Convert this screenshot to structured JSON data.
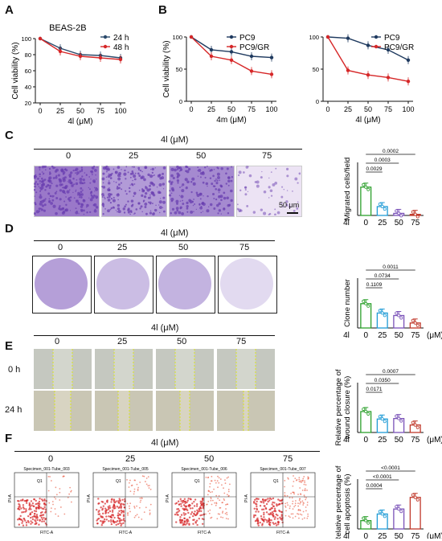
{
  "panels": {
    "A": "A",
    "B": "B",
    "C": "C",
    "D": "D",
    "E": "E",
    "F": "F"
  },
  "colors": {
    "blue": "#2b4a6b",
    "red": "#d62728",
    "navy": "#1f3a5f",
    "green": "#2ca02c",
    "cyan": "#1f9bd6",
    "purple": "#7a52b8",
    "crimson": "#c0392b",
    "stain": "#6a3fb0"
  },
  "chart_data": [
    {
      "type": "line",
      "id": "A",
      "title": "BEAS-2B",
      "xlabel": "4l (μM)",
      "ylabel": "Cell viability (%)",
      "x": [
        0,
        25,
        50,
        75,
        100
      ],
      "ylim": [
        20,
        100
      ],
      "yticks": [
        "100",
        "80",
        "60",
        "40",
        "20"
      ],
      "xticks": [
        "0",
        "25",
        "50",
        "75",
        "100"
      ],
      "series": [
        {
          "name": "24 h",
          "values": [
            100,
            88,
            80,
            79,
            76
          ]
        },
        {
          "name": "48 h",
          "values": [
            100,
            84,
            78,
            76,
            74
          ]
        }
      ]
    },
    {
      "type": "line",
      "id": "B1",
      "xlabel": "4m (μM)",
      "ylabel": "Cell viability (%)",
      "x": [
        0,
        25,
        50,
        75,
        100
      ],
      "ylim": [
        0,
        100
      ],
      "yticks": [
        "100",
        "50",
        "0"
      ],
      "xticks": [
        "0",
        "25",
        "50",
        "75",
        "100"
      ],
      "series": [
        {
          "name": "PC9",
          "values": [
            100,
            80,
            77,
            70,
            68
          ]
        },
        {
          "name": "PC9/GR",
          "values": [
            100,
            70,
            64,
            47,
            42
          ]
        }
      ]
    },
    {
      "type": "line",
      "id": "B2",
      "xlabel": "4l (μM)",
      "x": [
        0,
        25,
        50,
        75,
        100
      ],
      "ylim": [
        0,
        100
      ],
      "yticks": [
        "100",
        "50",
        "0"
      ],
      "xticks": [
        "0",
        "25",
        "50",
        "75",
        "100"
      ],
      "series": [
        {
          "name": "PC9",
          "values": [
            100,
            98,
            87,
            80,
            64
          ]
        },
        {
          "name": "PC9/GR",
          "values": [
            100,
            48,
            41,
            37,
            31
          ]
        }
      ]
    },
    {
      "type": "bar",
      "id": "C",
      "ylabel": "Migrated cells/field",
      "axis_label": "4l",
      "categories": [
        "0",
        "25",
        "50",
        "75"
      ],
      "values": [
        4800,
        1500,
        350,
        180
      ],
      "ylim": [
        0,
        9000
      ],
      "yticks": [
        "8000",
        "6000",
        "4000",
        "2000",
        "0"
      ],
      "brackets": [
        "0.0002",
        "0.0003",
        "0.0029"
      ]
    },
    {
      "type": "bar",
      "id": "D",
      "ylabel": "Clone number",
      "axis_label": "4l",
      "unit": "(μM)",
      "categories": [
        "0",
        "25",
        "50",
        "75"
      ],
      "values": [
        195,
        120,
        100,
        40
      ],
      "ylim": [
        0,
        400
      ],
      "yticks": [
        "300",
        "200",
        "100",
        "0"
      ],
      "brackets": [
        "0.0011",
        "0.0734",
        "0.1109"
      ]
    },
    {
      "type": "bar",
      "id": "E",
      "ylabel": "Relative percentage of wound closure (%)",
      "axis_label": "4l",
      "unit": "(μM)",
      "categories": [
        "0",
        "25",
        "50",
        "75"
      ],
      "values": [
        42,
        27,
        28,
        15
      ],
      "ylim": [
        0,
        100
      ],
      "yticks": [
        "80",
        "60",
        "40",
        "20",
        "0"
      ],
      "brackets": [
        "0.0007",
        "0.0350",
        "0.0171"
      ]
    },
    {
      "type": "bar",
      "id": "F",
      "ylabel": "Relative percentage of cell apoptosis (%)",
      "axis_label": "4l",
      "unit": "(μM)",
      "categories": [
        "0",
        "25",
        "50",
        "75"
      ],
      "values": [
        5,
        9,
        12,
        19
      ],
      "ylim": [
        0,
        30
      ],
      "yticks": [
        "30",
        "20",
        "10",
        "0"
      ],
      "brackets": [
        "<0.0001",
        "<0.0001",
        "0.0004"
      ]
    }
  ],
  "C": {
    "header": "4l (μM)",
    "conditions": [
      "0",
      "25",
      "50",
      "75"
    ],
    "scalebar": "50 μm"
  },
  "D": {
    "header": "4l (μM)",
    "conditions": [
      "0",
      "25",
      "50",
      "75"
    ]
  },
  "E": {
    "header": "4l (μM)",
    "conditions": [
      "0",
      "25",
      "50",
      "75"
    ],
    "rows": [
      "0 h",
      "24 h"
    ]
  },
  "F": {
    "header": "4l (μM)",
    "conditions": [
      "0",
      "25",
      "50",
      "75"
    ],
    "specimens": [
      "Specimen_001-Tube_003",
      "Specimen_001-Tube_005",
      "Specimen_001-Tube_006",
      "Specimen_001-Tube_007"
    ],
    "xaxis": "FITC-A",
    "yaxis": "PI-A",
    "quadrant": "Q1"
  }
}
